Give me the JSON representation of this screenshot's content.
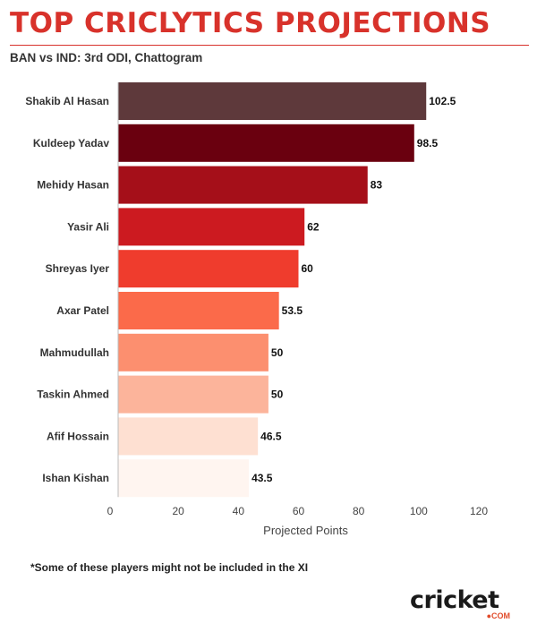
{
  "header": {
    "title": "TOP CRICLYTICS PROJECTIONS",
    "subtitle": "BAN vs IND: 3rd ODI, Chattogram"
  },
  "footnote": "*Some of these players might not be included in the XI",
  "logo": {
    "main": "cricket",
    "suffix": "●COM"
  },
  "colors": {
    "title": "#d8322b"
  },
  "chart_data": {
    "type": "bar",
    "orientation": "horizontal",
    "categories": [
      "Shakib Al Hasan",
      "Kuldeep Yadav",
      "Mehidy Hasan",
      "Yasir Ali",
      "Shreyas Iyer",
      "Axar Patel",
      "Mahmudullah",
      "Taskin Ahmed",
      "Afif Hossain",
      "Ishan Kishan"
    ],
    "values": [
      102.5,
      98.5,
      83,
      62,
      60,
      53.5,
      50,
      50,
      46.5,
      43.5
    ],
    "value_labels": [
      "102.5",
      "98.5",
      "83",
      "62",
      "60",
      "53.5",
      "50",
      "50",
      "46.5",
      "43.5"
    ],
    "bar_colors": [
      "#5e393b",
      "#6a000f",
      "#a50f19",
      "#cc1a20",
      "#ef3c2d",
      "#fb6a4a",
      "#fc8f6f",
      "#fcb49b",
      "#fee0d2",
      "#fff5f0"
    ],
    "xlabel": "Projected Points",
    "ylabel": "",
    "xlim": [
      0,
      120
    ],
    "xticks": [
      "0",
      "20",
      "40",
      "60",
      "80",
      "100",
      "120"
    ],
    "grid": false
  }
}
